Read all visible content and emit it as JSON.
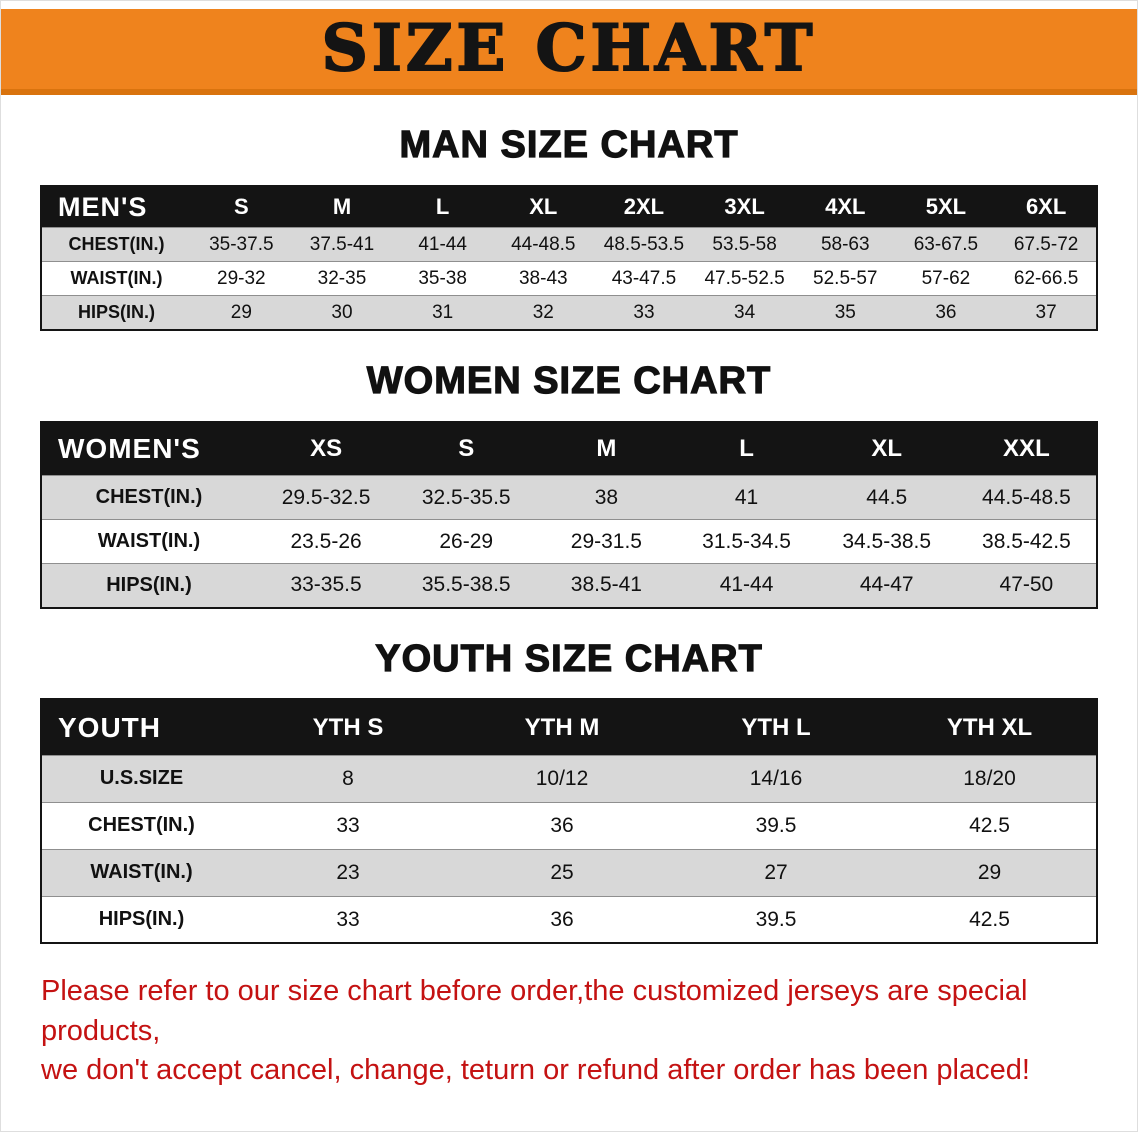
{
  "banner": {
    "title": "SIZE CHART"
  },
  "colors": {
    "banner_bg": "#EF831D",
    "banner_edge": "#D9730E",
    "header_bg": "#141414",
    "row_alt": "#D8D8D8",
    "footer_red": "#C41212"
  },
  "chart_data": [
    {
      "type": "table",
      "title": "MAN SIZE CHART",
      "corner_label": "MEN'S",
      "columns": [
        "S",
        "M",
        "L",
        "XL",
        "2XL",
        "3XL",
        "4XL",
        "5XL",
        "6XL"
      ],
      "rows": [
        {
          "label": "CHEST(IN.)",
          "values": [
            "35-37.5",
            "37.5-41",
            "41-44",
            "44-48.5",
            "48.5-53.5",
            "53.5-58",
            "58-63",
            "63-67.5",
            "67.5-72"
          ]
        },
        {
          "label": "WAIST(IN.)",
          "values": [
            "29-32",
            "32-35",
            "35-38",
            "38-43",
            "43-47.5",
            "47.5-52.5",
            "52.5-57",
            "57-62",
            "62-66.5"
          ]
        },
        {
          "label": "HIPS(IN.)",
          "values": [
            "29",
            "30",
            "31",
            "32",
            "33",
            "34",
            "35",
            "36",
            "37"
          ]
        }
      ]
    },
    {
      "type": "table",
      "title": "WOMEN SIZE CHART",
      "corner_label": "WOMEN'S",
      "columns": [
        "XS",
        "S",
        "M",
        "L",
        "XL",
        "XXL"
      ],
      "rows": [
        {
          "label": "CHEST(IN.)",
          "values": [
            "29.5-32.5",
            "32.5-35.5",
            "38",
            "41",
            "44.5",
            "44.5-48.5"
          ]
        },
        {
          "label": "WAIST(IN.)",
          "values": [
            "23.5-26",
            "26-29",
            "29-31.5",
            "31.5-34.5",
            "34.5-38.5",
            "38.5-42.5"
          ]
        },
        {
          "label": "HIPS(IN.)",
          "values": [
            "33-35.5",
            "35.5-38.5",
            "38.5-41",
            "41-44",
            "44-47",
            "47-50"
          ]
        }
      ]
    },
    {
      "type": "table",
      "title": "YOUTH SIZE CHART",
      "corner_label": "YOUTH",
      "columns": [
        "YTH S",
        "YTH M",
        "YTH L",
        "YTH XL"
      ],
      "rows": [
        {
          "label": "U.S.SIZE",
          "values": [
            "8",
            "10/12",
            "14/16",
            "18/20"
          ]
        },
        {
          "label": "CHEST(IN.)",
          "values": [
            "33",
            "36",
            "39.5",
            "42.5"
          ]
        },
        {
          "label": "WAIST(IN.)",
          "values": [
            "23",
            "25",
            "27",
            "29"
          ]
        },
        {
          "label": "HIPS(IN.)",
          "values": [
            "33",
            "36",
            "39.5",
            "42.5"
          ]
        }
      ]
    }
  ],
  "footer": {
    "line1": "Please refer to our size chart before order,the customized jerseys are special products,",
    "line2": "we don't accept cancel, change, teturn or refund after order has been placed!"
  }
}
